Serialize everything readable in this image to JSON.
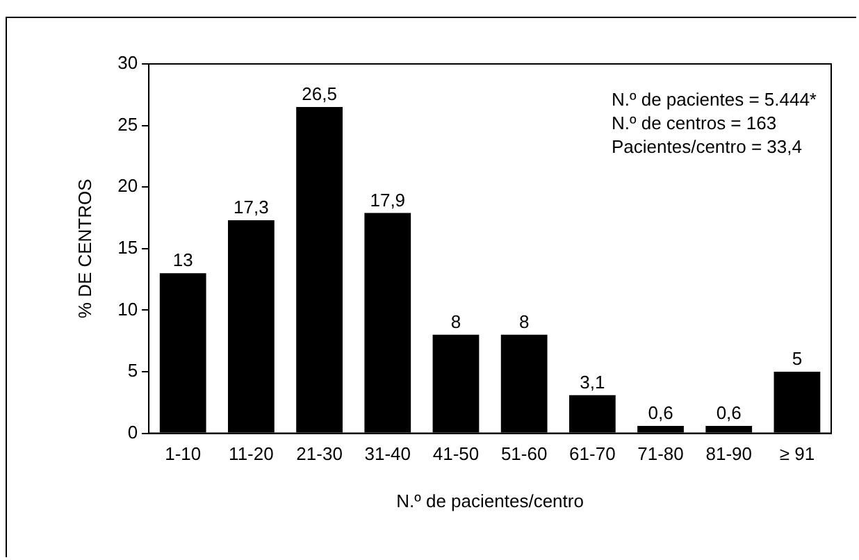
{
  "chart_data": {
    "type": "bar",
    "xlabel": "N.º de pacientes/centro",
    "ylabel": "% DE CENTROS",
    "categories": [
      "1-10",
      "11-20",
      "21-30",
      "31-40",
      "41-50",
      "51-60",
      "61-70",
      "71-80",
      "81-90",
      "≥ 91"
    ],
    "values": [
      13,
      17.3,
      26.5,
      17.9,
      8,
      8,
      3.1,
      0.6,
      0.6,
      5
    ],
    "value_labels": [
      "13",
      "17,3",
      "26,5",
      "17,9",
      "8",
      "8",
      "3,1",
      "0,6",
      "0,6",
      "5"
    ],
    "color": "#000000",
    "ylim": [
      0,
      30
    ],
    "yticks": [
      0,
      5,
      10,
      15,
      20,
      25,
      30
    ],
    "grid": false,
    "legend": false,
    "annotations": [
      "N.º de pacientes = 5.444*",
      "N.º de centros = 163",
      "Pacientes/centro = 33,4"
    ]
  }
}
